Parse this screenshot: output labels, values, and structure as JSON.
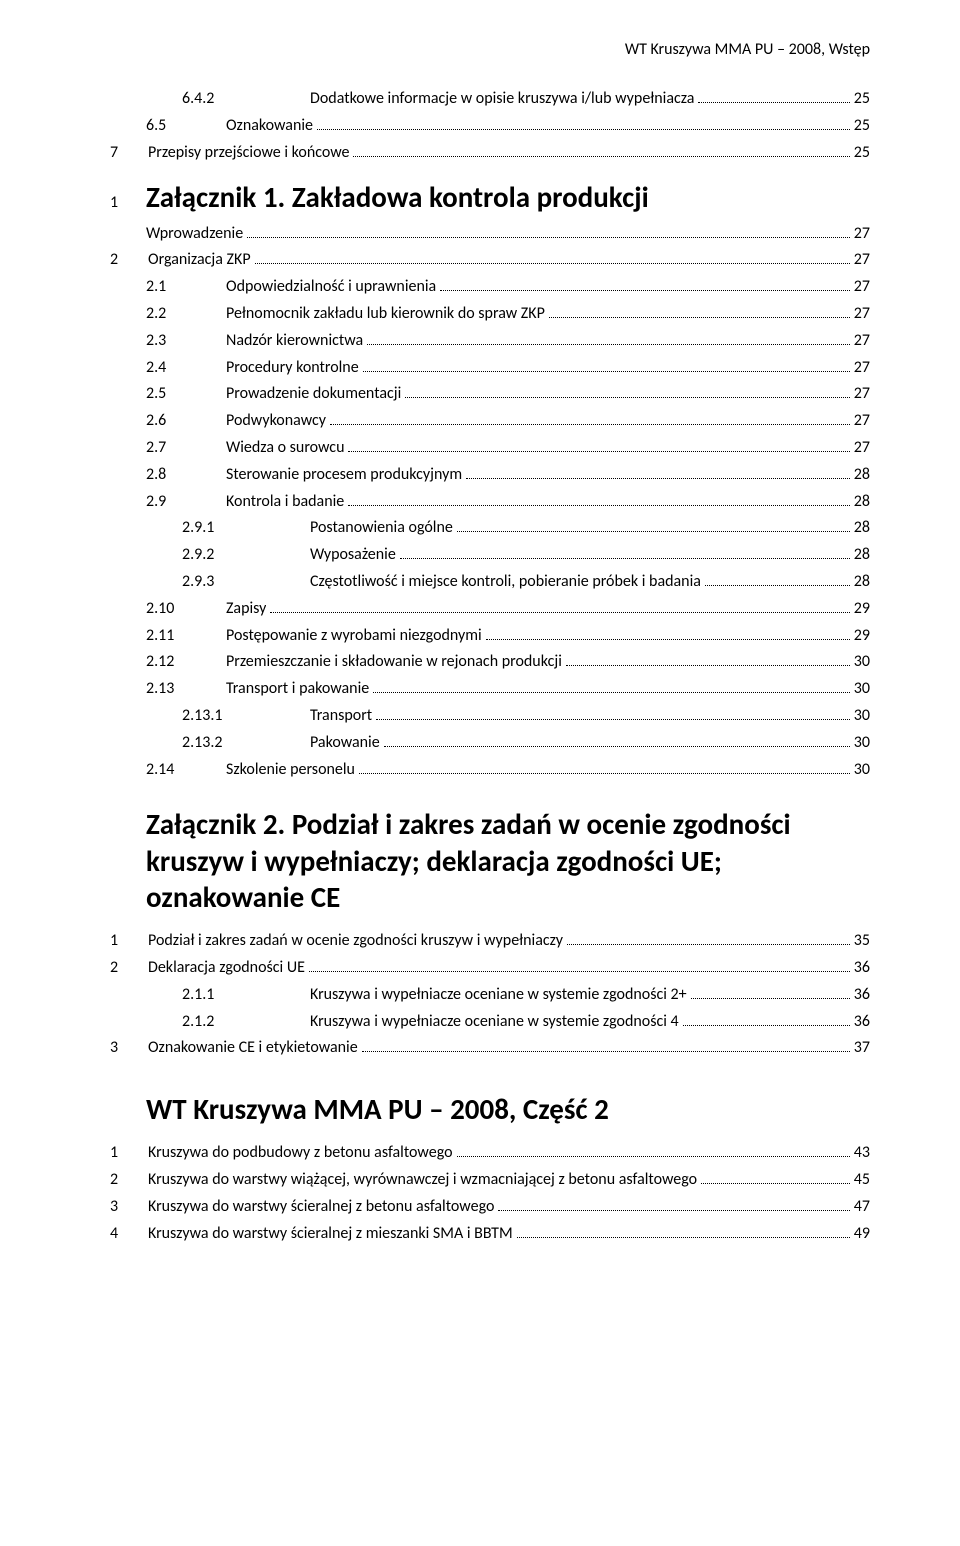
{
  "header": "WT Kruszywa MMA PU – 2008, Wstęp",
  "toc": [
    {
      "indent": 2,
      "num": "6.4.2",
      "label": "Dodatkowe informacje w opisie kruszywa i/lub wypełniacza",
      "page": "25"
    },
    {
      "indent": 1,
      "num": "6.5",
      "label": "Oznakowanie",
      "page": "25"
    },
    {
      "indent": 0,
      "num": "7",
      "label": "Przepisy przejściowe i końcowe",
      "page": "25"
    }
  ],
  "section1": {
    "intro_num": "1",
    "title": "Załącznik 1.  Zakładowa kontrola produkcji",
    "intro_label": "Wprowadzenie",
    "intro_page": "27",
    "items": [
      {
        "indent": 0,
        "num": "2",
        "label": "Organizacja ZKP",
        "page": "27"
      },
      {
        "indent": 1,
        "num": "2.1",
        "label": "Odpowiedzialność i uprawnienia",
        "page": "27"
      },
      {
        "indent": 1,
        "num": "2.2",
        "label": "Pełnomocnik zakładu lub kierownik do spraw ZKP",
        "page": "27"
      },
      {
        "indent": 1,
        "num": "2.3",
        "label": "Nadzór kierownictwa",
        "page": "27"
      },
      {
        "indent": 1,
        "num": "2.4",
        "label": "Procedury kontrolne",
        "page": "27"
      },
      {
        "indent": 1,
        "num": "2.5",
        "label": "Prowadzenie dokumentacji",
        "page": "27"
      },
      {
        "indent": 1,
        "num": "2.6",
        "label": "Podwykonawcy",
        "page": "27"
      },
      {
        "indent": 1,
        "num": "2.7",
        "label": "Wiedza o surowcu",
        "page": "27"
      },
      {
        "indent": 1,
        "num": "2.8",
        "label": "Sterowanie procesem produkcyjnym",
        "page": "28"
      },
      {
        "indent": 1,
        "num": "2.9",
        "label": "Kontrola i badanie",
        "page": "28"
      },
      {
        "indent": 2,
        "num": "2.9.1",
        "label": "Postanowienia ogólne",
        "page": "28"
      },
      {
        "indent": 2,
        "num": "2.9.2",
        "label": "Wyposażenie",
        "page": "28"
      },
      {
        "indent": 2,
        "num": "2.9.3",
        "label": "Częstotliwość i  miejsce kontroli, pobieranie próbek i badania",
        "page": "28"
      },
      {
        "indent": 1,
        "num": "2.10",
        "label": "Zapisy",
        "page": "29"
      },
      {
        "indent": 1,
        "num": "2.11",
        "label": "Postępowanie z wyrobami niezgodnymi",
        "page": "29"
      },
      {
        "indent": 1,
        "num": "2.12",
        "label": "Przemieszczanie i składowanie w rejonach produkcji",
        "page": "30"
      },
      {
        "indent": 1,
        "num": "2.13",
        "label": "Transport i pakowanie",
        "page": "30"
      },
      {
        "indent": 2,
        "num": "2.13.1",
        "label": "Transport",
        "page": "30"
      },
      {
        "indent": 2,
        "num": "2.13.2",
        "label": "Pakowanie",
        "page": "30"
      },
      {
        "indent": 1,
        "num": "2.14",
        "label": "Szkolenie personelu",
        "page": "30"
      }
    ]
  },
  "section2": {
    "title": "Załącznik 2.  Podział i zakres zadań w ocenie zgodności kruszyw i wypełniaczy; deklaracja zgodności UE; oznakowanie CE",
    "items": [
      {
        "indent": 0,
        "num": "1",
        "label": "Podział i zakres zadań w ocenie zgodności kruszyw i wypełniaczy",
        "page": "35"
      },
      {
        "indent": 0,
        "num": "2",
        "label": "Deklaracja zgodności UE",
        "page": "36"
      },
      {
        "indent": 2,
        "num": "2.1.1",
        "label": "Kruszywa i wypełniacze oceniane w systemie zgodności 2+",
        "page": "36"
      },
      {
        "indent": 2,
        "num": "2.1.2",
        "label": "Kruszywa i wypełniacze oceniane w systemie zgodności 4",
        "page": "36"
      },
      {
        "indent": 0,
        "num": "3",
        "label": "Oznakowanie CE i etykietowanie",
        "page": "37"
      }
    ]
  },
  "section3": {
    "title": "WT Kruszywa MMA PU – 2008, Część 2",
    "items": [
      {
        "indent": 0,
        "num": "1",
        "label": "Kruszywa do podbudowy z betonu asfaltowego",
        "page": "43"
      },
      {
        "indent": 0,
        "num": "2",
        "label": "Kruszywa do warstwy wiążącej, wyrównawczej i wzmacniającej z betonu asfaltowego",
        "page": "45"
      },
      {
        "indent": 0,
        "num": "3",
        "label": "Kruszywa do warstwy ścieralnej z betonu asfaltowego",
        "page": "47"
      },
      {
        "indent": 0,
        "num": "4",
        "label": "Kruszywa do warstwy ścieralnej z mieszanki SMA i BBTM",
        "page": "49"
      }
    ]
  }
}
